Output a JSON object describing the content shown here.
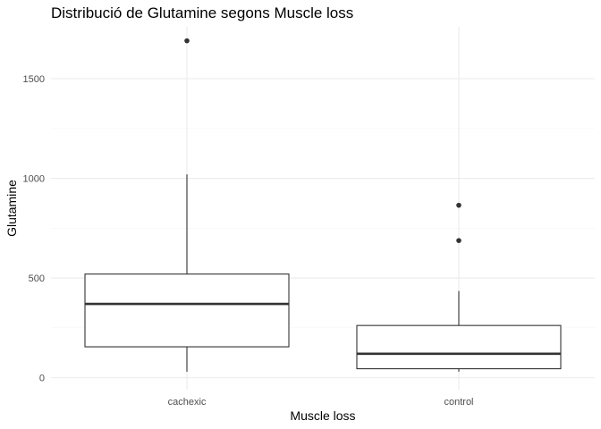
{
  "chart_data": {
    "type": "boxplot",
    "title": "Distribució de Glutamine segons Muscle loss",
    "xlabel": "Muscle loss",
    "ylabel": "Glutamine",
    "categories": [
      "cachexic",
      "control"
    ],
    "ylim": [
      -60,
      1760
    ],
    "yticks": [
      0,
      500,
      1000,
      1500
    ],
    "ytick_labels": [
      "0",
      "500",
      "1000",
      "1500"
    ],
    "grid": true,
    "boxes": [
      {
        "category": "cachexic",
        "lower_whisker": 30,
        "q1": 155,
        "median": 370,
        "q3": 520,
        "upper_whisker": 1020,
        "outliers": [
          1690
        ]
      },
      {
        "category": "control",
        "lower_whisker": 30,
        "q1": 45,
        "median": 120,
        "q3": 262,
        "upper_whisker": 435,
        "outliers": [
          865,
          688
        ]
      }
    ]
  }
}
